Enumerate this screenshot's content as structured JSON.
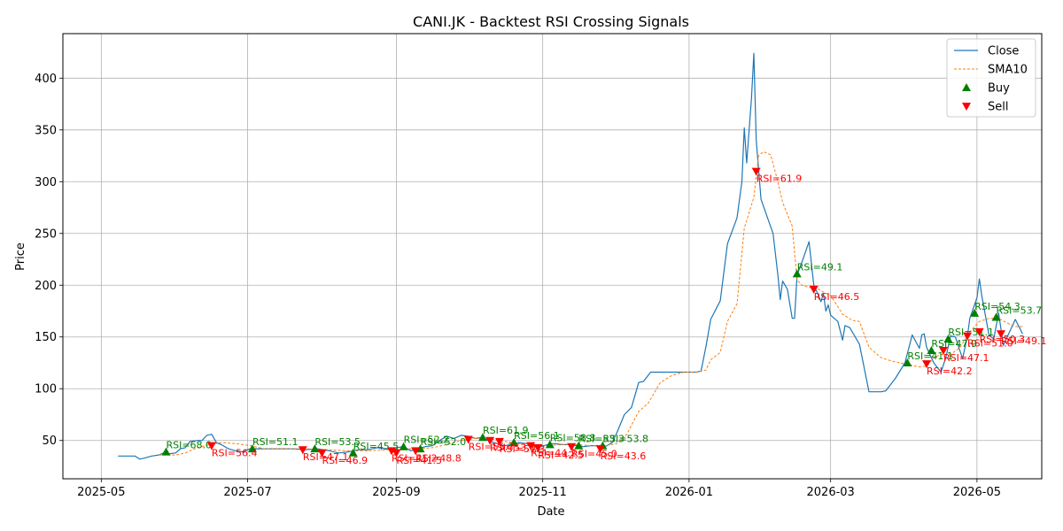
{
  "chart_data": {
    "type": "line",
    "title": "CANI.JK - Backtest RSI Crossing Signals",
    "xlabel": "Date",
    "ylabel": "Price",
    "x_range": [
      "2025-04-15",
      "2026-05-28"
    ],
    "ylim": [
      13,
      443
    ],
    "x_ticks": [
      {
        "date": "2025-05-01",
        "label": "2025-05"
      },
      {
        "date": "2025-07-01",
        "label": "2025-07"
      },
      {
        "date": "2025-09-01",
        "label": "2025-09"
      },
      {
        "date": "2025-11-01",
        "label": "2025-11"
      },
      {
        "date": "2026-01-01",
        "label": "2026-01"
      },
      {
        "date": "2026-03-01",
        "label": "2026-03"
      },
      {
        "date": "2026-05-01",
        "label": "2026-05"
      }
    ],
    "y_ticks": [
      50,
      100,
      150,
      200,
      250,
      300,
      350,
      400
    ],
    "grid": true,
    "legend_position": "top-right",
    "colors": {
      "close": "#1f77b4",
      "sma": "#ff7f0e",
      "buy": "#008000",
      "sell": "#ff0000",
      "buy_label": "#008000",
      "sell_label": "#ff0000"
    },
    "legend": [
      {
        "name": "Close",
        "style": "line"
      },
      {
        "name": "SMA10",
        "style": "dashed"
      },
      {
        "name": "Buy",
        "style": "triangle-up"
      },
      {
        "name": "Sell",
        "style": "triangle-down"
      }
    ],
    "close": [
      [
        "2025-05-08",
        35
      ],
      [
        "2025-05-12",
        35
      ],
      [
        "2025-05-15",
        35
      ],
      [
        "2025-05-17",
        32
      ],
      [
        "2025-05-19",
        33
      ],
      [
        "2025-05-22",
        35
      ],
      [
        "2025-05-25",
        36
      ],
      [
        "2025-05-27",
        38
      ],
      [
        "2025-05-29",
        37
      ],
      [
        "2025-06-01",
        38
      ],
      [
        "2025-06-03",
        42
      ],
      [
        "2025-06-05",
        43
      ],
      [
        "2025-06-07",
        49
      ],
      [
        "2025-06-10",
        50
      ],
      [
        "2025-06-12",
        50
      ],
      [
        "2025-06-14",
        55
      ],
      [
        "2025-06-16",
        56
      ],
      [
        "2025-06-18",
        48
      ],
      [
        "2025-06-20",
        46
      ],
      [
        "2025-06-23",
        42
      ],
      [
        "2025-06-26",
        40
      ],
      [
        "2025-06-29",
        39
      ],
      [
        "2025-07-02",
        42
      ],
      [
        "2025-07-06",
        42
      ],
      [
        "2025-07-10",
        42
      ],
      [
        "2025-07-15",
        42
      ],
      [
        "2025-07-20",
        42
      ],
      [
        "2025-07-25",
        41
      ],
      [
        "2025-07-30",
        42
      ],
      [
        "2025-08-04",
        40
      ],
      [
        "2025-08-08",
        38
      ],
      [
        "2025-08-12",
        39
      ],
      [
        "2025-08-16",
        41
      ],
      [
        "2025-08-20",
        41
      ],
      [
        "2025-08-24",
        43
      ],
      [
        "2025-08-28",
        42
      ],
      [
        "2025-09-01",
        43
      ],
      [
        "2025-09-04",
        44
      ],
      [
        "2025-09-07",
        40
      ],
      [
        "2025-09-10",
        42
      ],
      [
        "2025-09-13",
        44
      ],
      [
        "2025-09-16",
        45
      ],
      [
        "2025-09-19",
        50
      ],
      [
        "2025-09-22",
        54
      ],
      [
        "2025-09-25",
        52
      ],
      [
        "2025-09-28",
        55
      ],
      [
        "2025-10-01",
        54
      ],
      [
        "2025-10-04",
        52
      ],
      [
        "2025-10-07",
        53
      ],
      [
        "2025-10-10",
        49
      ],
      [
        "2025-10-13",
        47
      ],
      [
        "2025-10-16",
        45
      ],
      [
        "2025-10-19",
        46
      ],
      [
        "2025-10-22",
        48
      ],
      [
        "2025-10-25",
        47
      ],
      [
        "2025-10-28",
        45
      ],
      [
        "2025-10-31",
        44
      ],
      [
        "2025-11-03",
        46
      ],
      [
        "2025-11-06",
        47
      ],
      [
        "2025-11-09",
        46
      ],
      [
        "2025-11-12",
        46
      ],
      [
        "2025-11-15",
        45
      ],
      [
        "2025-11-18",
        44
      ],
      [
        "2025-11-21",
        45
      ],
      [
        "2025-11-24",
        45
      ],
      [
        "2025-11-27",
        44
      ],
      [
        "2025-11-30",
        48
      ],
      [
        "2025-12-02",
        58
      ],
      [
        "2025-12-05",
        75
      ],
      [
        "2025-12-08",
        82
      ],
      [
        "2025-12-11",
        106
      ],
      [
        "2025-12-13",
        107
      ],
      [
        "2025-12-16",
        116
      ],
      [
        "2025-12-20",
        116
      ],
      [
        "2025-12-25",
        116
      ],
      [
        "2025-12-30",
        116
      ],
      [
        "2026-01-04",
        116
      ],
      [
        "2026-01-06",
        117
      ],
      [
        "2026-01-08",
        140
      ],
      [
        "2026-01-10",
        167
      ],
      [
        "2026-01-14",
        185
      ],
      [
        "2026-01-17",
        240
      ],
      [
        "2026-01-21",
        265
      ],
      [
        "2026-01-23",
        300
      ],
      [
        "2026-01-24",
        352
      ],
      [
        "2026-01-25",
        318
      ],
      [
        "2026-01-27",
        380
      ],
      [
        "2026-01-28",
        424
      ],
      [
        "2026-01-29",
        340
      ],
      [
        "2026-01-31",
        283
      ],
      [
        "2026-02-03",
        263
      ],
      [
        "2026-02-05",
        250
      ],
      [
        "2026-02-07",
        210
      ],
      [
        "2026-02-08",
        186
      ],
      [
        "2026-02-09",
        204
      ],
      [
        "2026-02-11",
        196
      ],
      [
        "2026-02-13",
        168
      ],
      [
        "2026-02-14",
        168
      ],
      [
        "2026-02-15",
        210
      ],
      [
        "2026-02-17",
        222
      ],
      [
        "2026-02-20",
        242
      ],
      [
        "2026-02-22",
        200
      ],
      [
        "2026-02-24",
        190
      ],
      [
        "2026-02-25",
        184
      ],
      [
        "2026-02-26",
        192
      ],
      [
        "2026-02-27",
        175
      ],
      [
        "2026-02-28",
        181
      ],
      [
        "2026-03-01",
        171
      ],
      [
        "2026-03-04",
        165
      ],
      [
        "2026-03-06",
        147
      ],
      [
        "2026-03-07",
        161
      ],
      [
        "2026-03-09",
        159
      ],
      [
        "2026-03-13",
        143
      ],
      [
        "2026-03-17",
        97
      ],
      [
        "2026-03-22",
        97
      ],
      [
        "2026-03-24",
        98
      ],
      [
        "2026-03-28",
        110
      ],
      [
        "2026-04-01",
        125
      ],
      [
        "2026-04-04",
        152
      ],
      [
        "2026-04-07",
        139
      ],
      [
        "2026-04-08",
        152
      ],
      [
        "2026-04-09",
        153
      ],
      [
        "2026-04-10",
        140
      ],
      [
        "2026-04-13",
        125
      ],
      [
        "2026-04-16",
        116
      ],
      [
        "2026-04-18",
        130
      ],
      [
        "2026-04-20",
        151
      ],
      [
        "2026-04-22",
        150
      ],
      [
        "2026-04-23",
        143
      ],
      [
        "2026-04-25",
        129
      ],
      [
        "2026-04-27",
        150
      ],
      [
        "2026-04-28",
        168
      ],
      [
        "2026-05-01",
        188
      ],
      [
        "2026-05-02",
        206
      ],
      [
        "2026-05-03",
        190
      ],
      [
        "2026-05-06",
        152
      ],
      [
        "2026-05-08",
        148
      ],
      [
        "2026-05-10",
        173
      ],
      [
        "2026-05-12",
        142
      ],
      [
        "2026-05-14",
        152
      ],
      [
        "2026-05-17",
        167
      ],
      [
        "2026-05-20",
        153
      ]
    ],
    "sma10": [
      [
        "2025-05-25",
        36
      ],
      [
        "2025-06-01",
        36
      ],
      [
        "2025-06-05",
        38
      ],
      [
        "2025-06-10",
        43
      ],
      [
        "2025-06-15",
        46
      ],
      [
        "2025-06-20",
        48
      ],
      [
        "2025-06-26",
        47
      ],
      [
        "2025-07-02",
        45
      ],
      [
        "2025-07-08",
        42
      ],
      [
        "2025-07-15",
        42
      ],
      [
        "2025-07-25",
        42
      ],
      [
        "2025-08-04",
        41
      ],
      [
        "2025-08-12",
        40
      ],
      [
        "2025-08-20",
        40
      ],
      [
        "2025-08-28",
        41
      ],
      [
        "2025-09-04",
        42
      ],
      [
        "2025-09-10",
        42
      ],
      [
        "2025-09-16",
        43
      ],
      [
        "2025-09-22",
        46
      ],
      [
        "2025-09-28",
        50
      ],
      [
        "2025-10-04",
        52
      ],
      [
        "2025-10-10",
        52
      ],
      [
        "2025-10-16",
        49
      ],
      [
        "2025-10-22",
        47
      ],
      [
        "2025-10-28",
        46
      ],
      [
        "2025-11-03",
        45
      ],
      [
        "2025-11-09",
        46
      ],
      [
        "2025-11-15",
        46
      ],
      [
        "2025-11-21",
        45
      ],
      [
        "2025-11-27",
        45
      ],
      [
        "2025-12-02",
        47
      ],
      [
        "2025-12-06",
        56
      ],
      [
        "2025-12-11",
        78
      ],
      [
        "2025-12-15",
        86
      ],
      [
        "2025-12-20",
        106
      ],
      [
        "2025-12-25",
        113
      ],
      [
        "2025-12-30",
        116
      ],
      [
        "2026-01-04",
        116
      ],
      [
        "2026-01-08",
        118
      ],
      [
        "2026-01-10",
        128
      ],
      [
        "2026-01-14",
        135
      ],
      [
        "2026-01-17",
        165
      ],
      [
        "2026-01-21",
        182
      ],
      [
        "2026-01-24",
        255
      ],
      [
        "2026-01-28",
        285
      ],
      [
        "2026-01-30",
        325
      ],
      [
        "2026-02-01",
        329
      ],
      [
        "2026-02-04",
        326
      ],
      [
        "2026-02-07",
        300
      ],
      [
        "2026-02-09",
        280
      ],
      [
        "2026-02-13",
        257
      ],
      [
        "2026-02-15",
        205
      ],
      [
        "2026-02-17",
        200
      ],
      [
        "2026-02-20",
        198
      ],
      [
        "2026-02-24",
        196
      ],
      [
        "2026-03-01",
        190
      ],
      [
        "2026-03-06",
        172
      ],
      [
        "2026-03-10",
        166
      ],
      [
        "2026-03-13",
        165
      ],
      [
        "2026-03-17",
        140
      ],
      [
        "2026-03-22",
        130
      ],
      [
        "2026-03-26",
        127
      ],
      [
        "2026-04-01",
        124
      ],
      [
        "2026-04-07",
        121
      ],
      [
        "2026-04-10",
        122
      ],
      [
        "2026-04-13",
        130
      ],
      [
        "2026-04-16",
        133
      ],
      [
        "2026-04-20",
        133
      ],
      [
        "2026-04-24",
        140
      ],
      [
        "2026-04-28",
        155
      ],
      [
        "2026-05-02",
        165
      ],
      [
        "2026-05-06",
        168
      ],
      [
        "2026-05-10",
        168
      ],
      [
        "2026-05-14",
        163
      ],
      [
        "2026-05-17",
        160
      ],
      [
        "2026-05-20",
        160
      ]
    ],
    "buy_signals": [
      {
        "date": "2025-05-28",
        "price": 39,
        "label": "RSI=68.0"
      },
      {
        "date": "2025-07-03",
        "price": 42,
        "label": "RSI=51.1"
      },
      {
        "date": "2025-07-29",
        "price": 42,
        "label": "RSI=53.5"
      },
      {
        "date": "2025-08-14",
        "price": 38,
        "label": "RSI=45.5"
      },
      {
        "date": "2025-09-04",
        "price": 44,
        "label": "RSI=52.2"
      },
      {
        "date": "2025-09-11",
        "price": 42,
        "label": "RSI=52.0"
      },
      {
        "date": "2025-10-07",
        "price": 53,
        "label": "RSI=61.9"
      },
      {
        "date": "2025-10-20",
        "price": 48,
        "label": "RSI=56.1"
      },
      {
        "date": "2025-11-04",
        "price": 46,
        "label": "RSI=58.8"
      },
      {
        "date": "2025-11-16",
        "price": 45,
        "label": "RSI=53.3"
      },
      {
        "date": "2025-11-26",
        "price": 45,
        "label": "RSI=53.8"
      },
      {
        "date": "2026-02-15",
        "price": 211,
        "label": "RSI=49.1"
      },
      {
        "date": "2026-04-02",
        "price": 125,
        "label": "RSI=41.1"
      },
      {
        "date": "2026-04-12",
        "price": 137,
        "label": "RSI=47.9"
      },
      {
        "date": "2026-04-19",
        "price": 148,
        "label": "RSI=51.1"
      },
      {
        "date": "2026-04-30",
        "price": 173,
        "label": "RSI=54.3"
      },
      {
        "date": "2026-05-09",
        "price": 169,
        "label": "RSI=53.7"
      }
    ],
    "sell_signals": [
      {
        "date": "2025-06-16",
        "price": 45,
        "label": "RSI=56.4"
      },
      {
        "date": "2025-07-24",
        "price": 41,
        "label": "RSI=47.1"
      },
      {
        "date": "2025-08-01",
        "price": 38,
        "label": "RSI=46.9"
      },
      {
        "date": "2025-08-30",
        "price": 40,
        "label": "RSI=41.2"
      },
      {
        "date": "2025-09-01",
        "price": 38,
        "label": "RSI=41.5"
      },
      {
        "date": "2025-09-09",
        "price": 40,
        "label": "RSI=48.8"
      },
      {
        "date": "2025-10-01",
        "price": 51,
        "label": "RSI=55.7"
      },
      {
        "date": "2025-10-10",
        "price": 50,
        "label": "RSI=53.0"
      },
      {
        "date": "2025-10-14",
        "price": 49,
        "label": "RSI=51.3"
      },
      {
        "date": "2025-10-27",
        "price": 45,
        "label": "RSI=44.2"
      },
      {
        "date": "2025-10-30",
        "price": 43,
        "label": "RSI=42.5"
      },
      {
        "date": "2025-11-13",
        "price": 44,
        "label": "RSI=45.0"
      },
      {
        "date": "2025-11-25",
        "price": 42,
        "label": "RSI=43.6"
      },
      {
        "date": "2026-01-29",
        "price": 310,
        "label": "RSI=61.9"
      },
      {
        "date": "2026-02-22",
        "price": 196,
        "label": "RSI=46.5"
      },
      {
        "date": "2026-04-10",
        "price": 124,
        "label": "RSI=42.2"
      },
      {
        "date": "2026-04-17",
        "price": 137,
        "label": "RSI=47.1"
      },
      {
        "date": "2026-04-27",
        "price": 151,
        "label": "RSI=51.0"
      },
      {
        "date": "2026-05-02",
        "price": 155,
        "label": "RSI=50.3"
      },
      {
        "date": "2026-05-11",
        "price": 153,
        "label": "RSI=49.1"
      }
    ]
  }
}
